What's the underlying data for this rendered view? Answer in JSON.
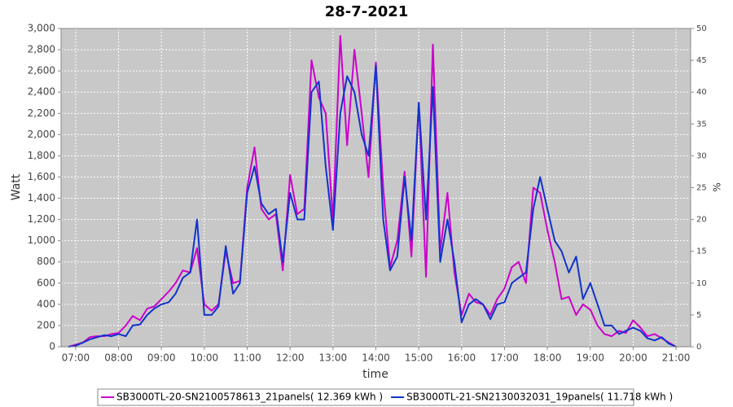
{
  "chart_data": {
    "type": "line",
    "title": "28-7-2021",
    "x_label": "time",
    "y_label": "Watt",
    "y2_label": "%",
    "x": [
      6.83,
      7,
      7.17,
      7.33,
      7.5,
      7.67,
      7.83,
      8,
      8.17,
      8.33,
      8.5,
      8.67,
      8.83,
      9,
      9.17,
      9.33,
      9.5,
      9.67,
      9.83,
      10,
      10.17,
      10.33,
      10.5,
      10.67,
      10.83,
      11,
      11.17,
      11.33,
      11.5,
      11.67,
      11.83,
      12,
      12.17,
      12.33,
      12.5,
      12.67,
      12.83,
      13,
      13.17,
      13.33,
      13.5,
      13.67,
      13.83,
      14,
      14.17,
      14.33,
      14.5,
      14.67,
      14.83,
      15,
      15.17,
      15.33,
      15.5,
      15.67,
      15.83,
      16,
      16.17,
      16.33,
      16.5,
      16.67,
      16.83,
      17,
      17.17,
      17.33,
      17.5,
      17.67,
      17.83,
      18,
      18.17,
      18.33,
      18.5,
      18.67,
      18.83,
      19,
      19.17,
      19.33,
      19.5,
      19.67,
      19.83,
      20,
      20.17,
      20.33,
      20.5,
      20.67,
      20.83,
      21
    ],
    "series": [
      {
        "name": "SB3000TL-20-SN2100578613_21panels( 12.369 kWh )",
        "color": "#cc00cc",
        "values": [
          0,
          20,
          40,
          90,
          100,
          100,
          120,
          130,
          200,
          290,
          250,
          360,
          380,
          450,
          520,
          600,
          720,
          700,
          930,
          400,
          340,
          400,
          900,
          600,
          620,
          1500,
          1880,
          1300,
          1200,
          1250,
          720,
          1620,
          1250,
          1300,
          2700,
          2350,
          2200,
          1200,
          2930,
          1900,
          2800,
          2200,
          1600,
          2680,
          1500,
          750,
          1000,
          1650,
          850,
          2300,
          660,
          2850,
          900,
          1450,
          700,
          300,
          500,
          420,
          400,
          300,
          450,
          550,
          750,
          800,
          600,
          1500,
          1450,
          1100,
          800,
          450,
          470,
          300,
          400,
          350,
          200,
          120,
          100,
          150,
          130,
          250,
          180,
          100,
          120,
          80,
          40,
          0
        ]
      },
      {
        "name": "SB3000TL-21-SN2130032031_19panels( 11.718 kWh )",
        "color": "#1133cc",
        "values": [
          0,
          10,
          40,
          70,
          90,
          110,
          100,
          120,
          100,
          200,
          210,
          300,
          360,
          400,
          420,
          500,
          650,
          700,
          1200,
          300,
          300,
          380,
          950,
          500,
          600,
          1450,
          1700,
          1350,
          1250,
          1300,
          800,
          1450,
          1200,
          1200,
          2400,
          2500,
          1700,
          1100,
          2200,
          2550,
          2400,
          2000,
          1800,
          2650,
          1200,
          720,
          850,
          1600,
          1000,
          2300,
          1200,
          2450,
          800,
          1200,
          800,
          230,
          400,
          450,
          400,
          260,
          400,
          420,
          600,
          650,
          700,
          1300,
          1600,
          1300,
          1000,
          900,
          700,
          850,
          450,
          600,
          400,
          200,
          200,
          120,
          150,
          180,
          150,
          80,
          60,
          90,
          30,
          0
        ]
      }
    ],
    "xlim": [
      6.66,
      21.34
    ],
    "xticks": [
      {
        "value": 7,
        "label": "07:00"
      },
      {
        "value": 8,
        "label": "08:00"
      },
      {
        "value": 9,
        "label": "09:00"
      },
      {
        "value": 10,
        "label": "10:00"
      },
      {
        "value": 11,
        "label": "11:00"
      },
      {
        "value": 12,
        "label": "12:00"
      },
      {
        "value": 13,
        "label": "13:00"
      },
      {
        "value": 14,
        "label": "14:00"
      },
      {
        "value": 15,
        "label": "15:00"
      },
      {
        "value": 16,
        "label": "16:00"
      },
      {
        "value": 17,
        "label": "17:00"
      },
      {
        "value": 18,
        "label": "18:00"
      },
      {
        "value": 19,
        "label": "19:00"
      },
      {
        "value": 20,
        "label": "20:00"
      },
      {
        "value": 21,
        "label": "21:00"
      }
    ],
    "ylim": [
      0,
      3000
    ],
    "yticks": [
      0,
      200,
      400,
      600,
      800,
      {
        "value": 1000,
        "label": "1,000"
      },
      {
        "value": 1200,
        "label": "1,200"
      },
      {
        "value": 1400,
        "label": "1,400"
      },
      {
        "value": 1600,
        "label": "1,600"
      },
      {
        "value": 1800,
        "label": "1,800"
      },
      {
        "value": 2000,
        "label": "2,000"
      },
      {
        "value": 2200,
        "label": "2,200"
      },
      {
        "value": 2400,
        "label": "2,400"
      },
      {
        "value": 2600,
        "label": "2,600"
      },
      {
        "value": 2800,
        "label": "2,800"
      },
      {
        "value": 3000,
        "label": "3,000"
      }
    ],
    "y2lim": [
      0,
      50
    ],
    "y2ticks": [
      0,
      5,
      10,
      15,
      20,
      25,
      30,
      35,
      40,
      45,
      50
    ],
    "grid": true,
    "legend": "bottom"
  }
}
